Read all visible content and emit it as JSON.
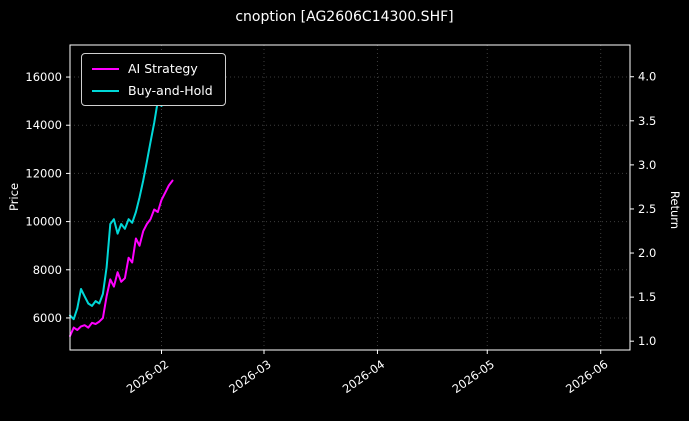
{
  "chart_data": {
    "type": "line",
    "title": "cnoption [AG2606C14300.SHF]",
    "ylabel_left": "Price",
    "ylabel_right": "Return",
    "x_unit": "days since 2026-01-07",
    "xlim": [
      0,
      153
    ],
    "ylim": [
      4670,
      17330
    ],
    "ylim_right": [
      0.9,
      4.36
    ],
    "grid": true,
    "legend_position": "upper-left",
    "x_ticks": [
      {
        "day": 25,
        "label": "2026-02"
      },
      {
        "day": 53,
        "label": "2026-03"
      },
      {
        "day": 84,
        "label": "2026-04"
      },
      {
        "day": 114,
        "label": "2026-05"
      },
      {
        "day": 145,
        "label": "2026-06"
      }
    ],
    "left_ticks": [
      6000,
      8000,
      10000,
      12000,
      14000,
      16000
    ],
    "right_ticks": [
      1.0,
      1.5,
      2.0,
      2.5,
      3.0,
      3.5,
      4.0
    ],
    "series": [
      {
        "name": "AI Strategy",
        "color": "#ff00ff",
        "days": [
          0,
          1,
          2,
          3,
          4,
          5,
          6,
          7,
          8,
          9,
          10,
          11,
          12,
          13,
          14,
          15,
          16,
          17,
          18,
          19,
          20,
          21,
          22,
          23,
          24,
          25,
          26,
          27,
          28
        ],
        "values": [
          5250,
          5600,
          5500,
          5650,
          5700,
          5600,
          5800,
          5750,
          5850,
          6000,
          6900,
          7600,
          7300,
          7900,
          7500,
          7650,
          8500,
          8300,
          9300,
          9000,
          9600,
          9900,
          10100,
          10500,
          10400,
          10900,
          11200,
          11500,
          11700
        ]
      },
      {
        "name": "Buy-and-Hold",
        "color": "#00d8d8",
        "days": [
          0,
          1,
          2,
          3,
          4,
          5,
          6,
          7,
          8,
          9,
          10,
          11,
          12,
          13,
          14,
          15,
          16,
          17,
          18,
          19,
          20,
          21,
          22,
          23,
          24,
          25,
          26,
          27
        ],
        "values": [
          6100,
          5950,
          6400,
          7200,
          6900,
          6600,
          6500,
          6700,
          6600,
          7000,
          8100,
          9900,
          10100,
          9500,
          9900,
          9700,
          10100,
          9950,
          10400,
          11000,
          11700,
          12500,
          13300,
          14100,
          15000,
          14800,
          16000,
          16500
        ]
      }
    ]
  }
}
